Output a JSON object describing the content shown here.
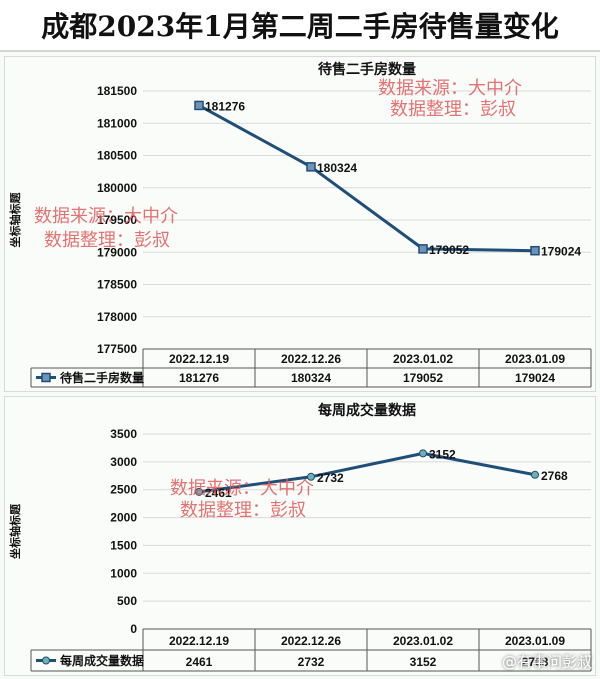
{
  "page_title": "成都2023年1月第二周二手房待售量变化",
  "watermark": {
    "line1": "数据来源：大中介",
    "line2": "数据整理：彭叔"
  },
  "brand": "@有事问彭叔",
  "chart_data": [
    {
      "type": "line",
      "title": "待售二手房数量",
      "ylabel": "坐标轴标题",
      "categories": [
        "2022.12.19",
        "2022.12.26",
        "2023.01.02",
        "2023.01.09"
      ],
      "series": [
        {
          "name": "待售二手房数量",
          "values": [
            181276,
            180324,
            179052,
            179024
          ]
        }
      ],
      "ylim": [
        177500,
        181500
      ],
      "yticks": [
        177500,
        178000,
        178500,
        179000,
        179500,
        180000,
        180500,
        181000,
        181500
      ],
      "marker": "square",
      "data_table": true,
      "color": "#1f4e79"
    },
    {
      "type": "line",
      "title": "每周成交量数据",
      "ylabel": "坐标轴标题",
      "categories": [
        "2022.12.19",
        "2022.12.26",
        "2023.01.02",
        "2023.01.09"
      ],
      "series": [
        {
          "name": "每周成交量数据",
          "values": [
            2461,
            2732,
            3152,
            2768
          ]
        }
      ],
      "ylim": [
        0,
        3500
      ],
      "yticks": [
        0,
        500,
        1000,
        1500,
        2000,
        2500,
        3000,
        3500
      ],
      "marker": "circle",
      "data_table": true,
      "color": "#1f4e79"
    }
  ]
}
